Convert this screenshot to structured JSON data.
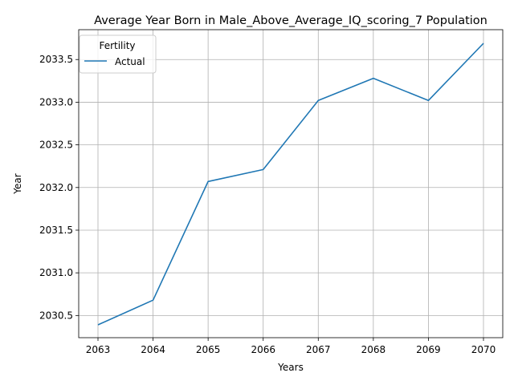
{
  "chart_data": {
    "type": "line",
    "title": "Average Year Born in Male_Above_Average_IQ_scoring_7 Population",
    "xlabel": "Years",
    "ylabel": "Year",
    "x": [
      2063,
      2064,
      2065,
      2066,
      2067,
      2068,
      2069,
      2070
    ],
    "xticks": [
      "2063",
      "2064",
      "2065",
      "2066",
      "2067",
      "2068",
      "2069",
      "2070"
    ],
    "yticks": [
      "2030.5",
      "2031.0",
      "2031.5",
      "2032.0",
      "2032.5",
      "2033.0",
      "2033.5"
    ],
    "ylim": [
      2030.24,
      2033.85
    ],
    "grid": true,
    "legend": {
      "title": "Fertility",
      "placement": "top-left"
    },
    "series": [
      {
        "name": "Actual",
        "color": "#1f77b4",
        "values": [
          2030.39,
          2030.68,
          2032.07,
          2032.21,
          2033.02,
          2033.28,
          2033.02,
          2033.69
        ]
      }
    ]
  }
}
